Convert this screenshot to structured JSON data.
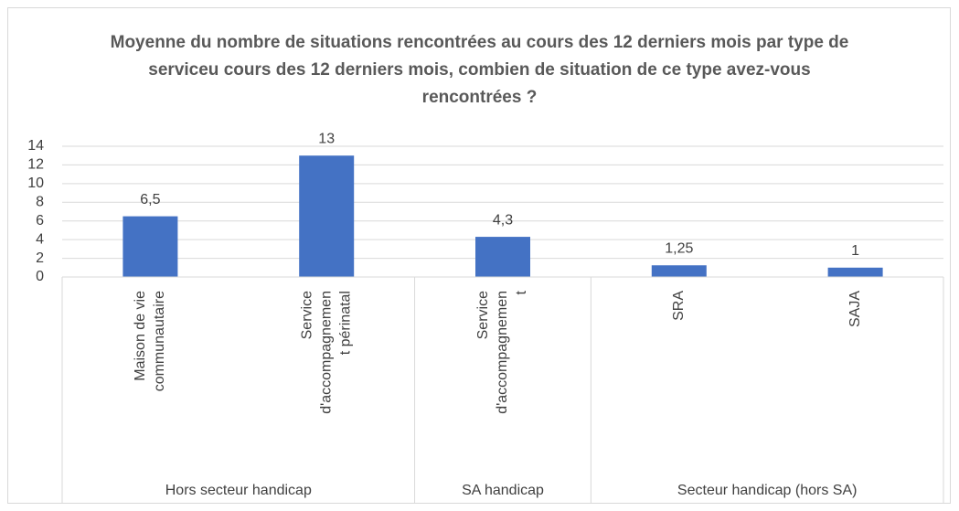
{
  "chart_data": {
    "type": "bar",
    "title": "Moyenne du nombre de situations rencontrées au cours des 12 derniers mois par type de serviceu cours des 12 derniers mois, combien de situation de ce type avez-vous rencontrées ?",
    "categories": [
      [
        "Maison de vie",
        "communautaire"
      ],
      [
        "Service",
        "d'accompagnemen",
        "t périnatal"
      ],
      [
        "Service",
        "d'accompagnemen",
        "t"
      ],
      [
        "SRA"
      ],
      [
        "SAJA"
      ]
    ],
    "category_groups": [
      "Hors secteur handicap",
      "Hors secteur handicap",
      "SA handicap",
      "Secteur handicap (hors SA)",
      "Secteur handicap (hors SA)"
    ],
    "values": [
      6.5,
      13,
      4.3,
      1.25,
      1
    ],
    "value_labels": [
      "6,5",
      "13",
      "4,3",
      "1,25",
      "1"
    ],
    "color": "#4472c4",
    "ylim": [
      0,
      14
    ],
    "yticks": [
      0,
      2,
      4,
      6,
      8,
      10,
      12,
      14
    ],
    "grid": true
  }
}
